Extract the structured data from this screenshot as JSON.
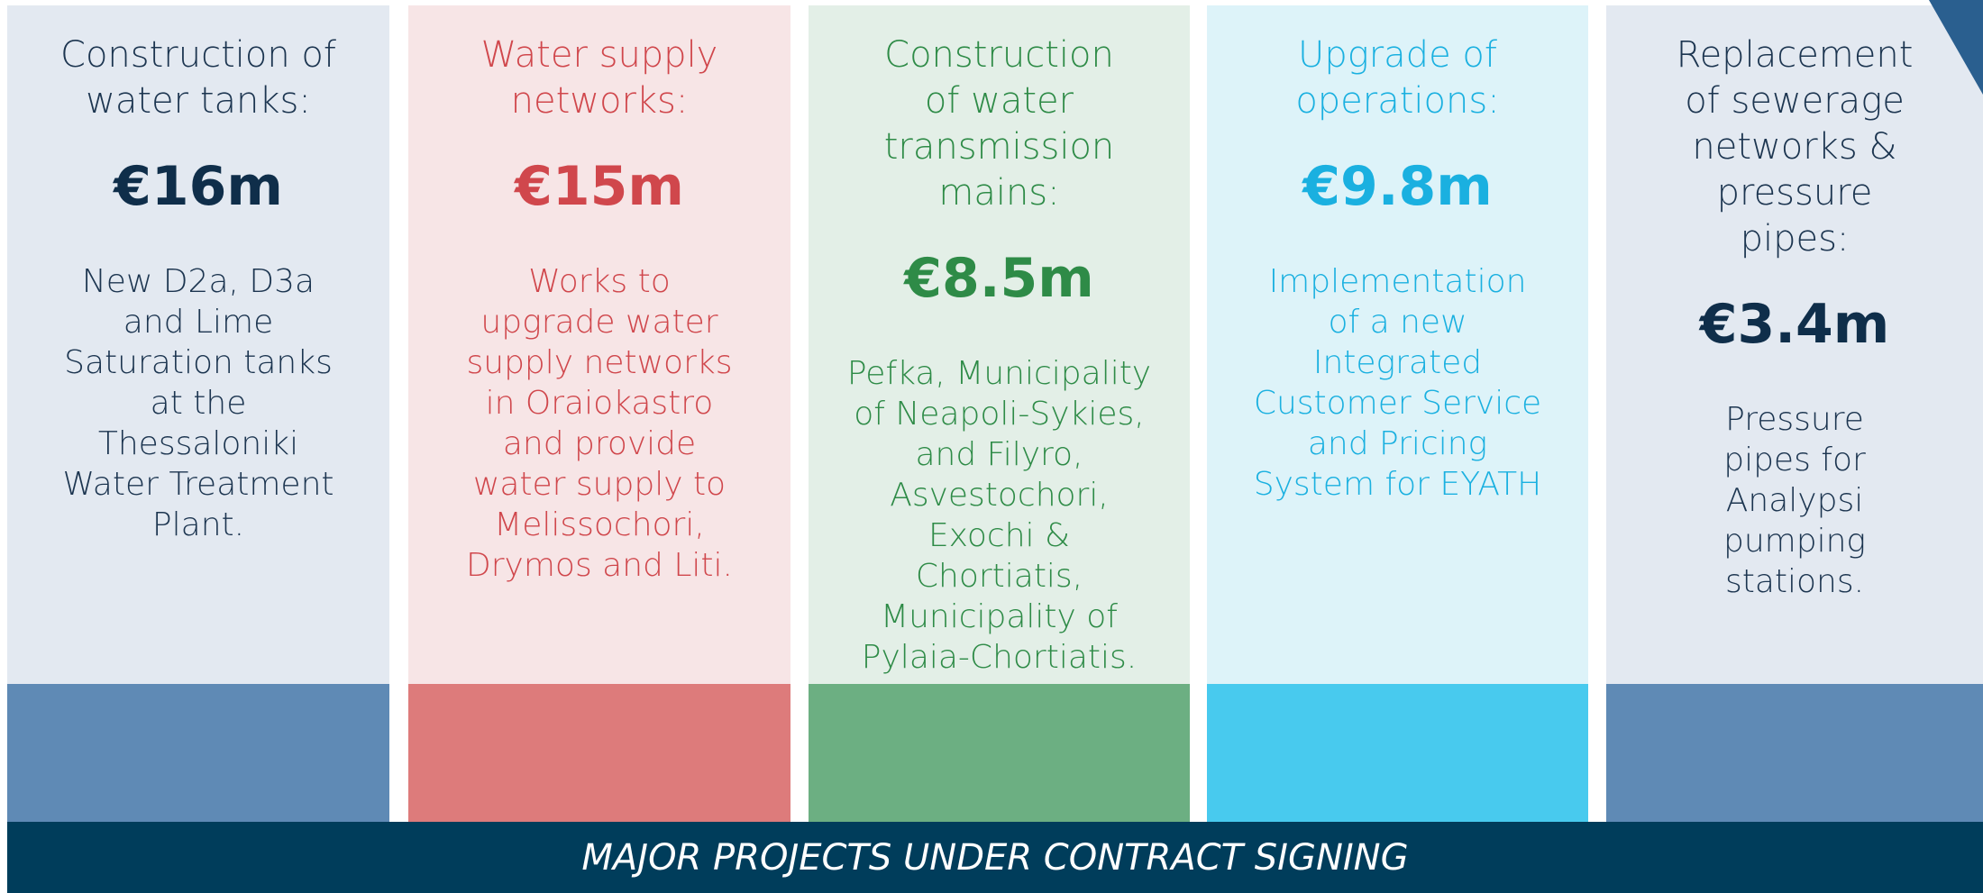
{
  "columns": [
    {
      "title": "Construction of water tanks:",
      "amount": "€16m",
      "description": "New D2a, D3a and Lime Saturation tanks at the Thessaloniki Water Treatment Plant."
    },
    {
      "title": "Water supply networks:",
      "amount": "€15m",
      "description": "Works to upgrade water supply networks in Oraiokastro and provide water supply to Melissochori, Drymos and Liti."
    },
    {
      "title": "Construction of water transmission mains:",
      "amount": "€8.5m",
      "description": "Pefka, Municipality of Neapoli-Sykies, and Filyro, Asvestochori, Exochi & Chortiatis, Municipality of Pylaia-Chortiatis."
    },
    {
      "title": "Upgrade of operations:",
      "amount": "€9.8m",
      "description": "Implementation of a new Integrated Customer Service and Pricing System for EYATH"
    },
    {
      "title": "Replacement of sewerage networks & pressure pipes:",
      "amount": "€3.4m",
      "description": "Pressure pipes for Analypsi pumping stations."
    }
  ],
  "footer": "MAJOR PROJECTS UNDER CONTRACT SIGNING"
}
